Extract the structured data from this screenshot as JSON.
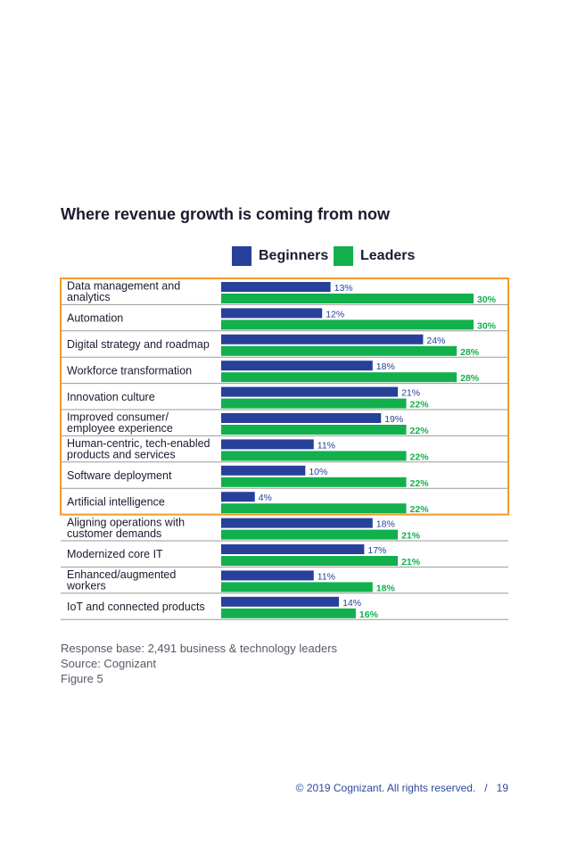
{
  "chart_data": {
    "type": "bar",
    "orientation": "horizontal",
    "title": "Where revenue growth is coming from now",
    "categories": [
      [
        "Data management and",
        "analytics"
      ],
      [
        "Automation"
      ],
      [
        "Digital strategy and roadmap"
      ],
      [
        "Workforce transformation"
      ],
      [
        "Innovation culture"
      ],
      [
        "Improved consumer/",
        "employee experience"
      ],
      [
        "Human-centric, tech-enabled",
        "products and services"
      ],
      [
        "Software deployment"
      ],
      [
        "Artificial intelligence"
      ],
      [
        "Aligning operations with",
        "customer demands"
      ],
      [
        "Modernized core IT"
      ],
      [
        "Enhanced/augmented",
        "workers"
      ],
      [
        "IoT and connected products"
      ]
    ],
    "series": [
      {
        "name": "Beginners",
        "color": "#27409a",
        "values": [
          13,
          12,
          24,
          18,
          21,
          19,
          11,
          10,
          4,
          18,
          17,
          11,
          14
        ]
      },
      {
        "name": "Leaders",
        "color": "#12b04c",
        "values": [
          30,
          30,
          28,
          28,
          22,
          22,
          22,
          22,
          22,
          21,
          21,
          18,
          16
        ]
      }
    ],
    "value_suffix": "%",
    "xlim": [
      0,
      30
    ],
    "highlighted_rows": 9,
    "highlight_color": "#f39a2a",
    "legend": "top-center",
    "grid": false
  },
  "notes": {
    "response_base": "Response base: 2,491 business & technology leaders",
    "source": "Source: Cognizant",
    "figure": "Figure 5"
  },
  "footer": {
    "copyright": "© 2019 Cognizant.  All rights reserved.",
    "separator": "/",
    "page_number": "19"
  }
}
